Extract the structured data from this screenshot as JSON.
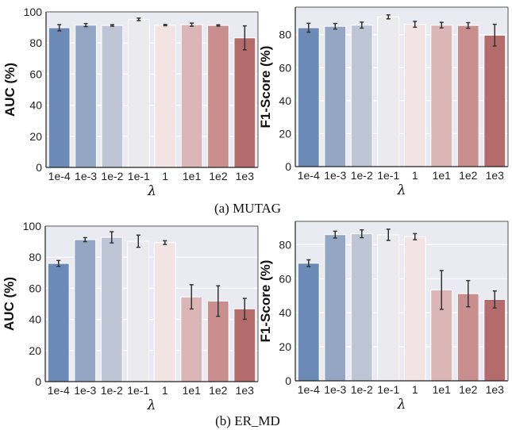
{
  "colors": [
    "#6b8ab6",
    "#93a6c4",
    "#bec6d6",
    "#ebebee",
    "#f3e4e4",
    "#dcb6b6",
    "#c98f8f",
    "#b46b6b"
  ],
  "background": "#eaeaf2",
  "captions": [
    "(a) MUTAG",
    "(b) ER_MD"
  ],
  "chart_data": [
    {
      "type": "bar",
      "dataset": "MUTAG",
      "categories": [
        "1e-4",
        "1e-3",
        "1e-2",
        "1e-1",
        "1",
        "1e1",
        "1e2",
        "1e3"
      ],
      "values": [
        89.8,
        91.5,
        91.3,
        95.2,
        91.5,
        91.8,
        91.3,
        83.3
      ],
      "errors": [
        2.0,
        1.0,
        0.5,
        0.8,
        0.4,
        1.0,
        0.4,
        7.7
      ],
      "xlabel": "λ",
      "ylabel": "AUC (%)",
      "ylim": [
        0,
        100
      ],
      "yticks": [
        0,
        20,
        40,
        60,
        80,
        100
      ],
      "grid": true
    },
    {
      "type": "bar",
      "dataset": "MUTAG",
      "categories": [
        "1e-4",
        "1e-3",
        "1e-2",
        "1e-1",
        "1",
        "1e1",
        "1e2",
        "1e3"
      ],
      "values": [
        84.2,
        85.1,
        85.8,
        90.8,
        86.3,
        85.8,
        85.6,
        79.7
      ],
      "errors": [
        2.7,
        1.7,
        1.8,
        1.2,
        1.8,
        1.7,
        1.7,
        6.6
      ],
      "xlabel": "λ",
      "ylabel": "F1-Score (%)",
      "ylim": [
        0,
        96.7
      ],
      "yticks": [
        0,
        20,
        40,
        60,
        80
      ],
      "grid": true
    },
    {
      "type": "bar",
      "dataset": "ER_MD",
      "categories": [
        "1e-4",
        "1e-3",
        "1e-2",
        "1e-1",
        "1",
        "1e1",
        "1e2",
        "1e3"
      ],
      "values": [
        76.0,
        91.3,
        92.8,
        90.3,
        89.4,
        54.5,
        51.8,
        46.8
      ],
      "errors": [
        1.9,
        1.3,
        3.6,
        3.9,
        1.2,
        7.8,
        9.8,
        6.7
      ],
      "xlabel": "λ",
      "ylabel": "AUC (%)",
      "ylim": [
        0,
        100
      ],
      "yticks": [
        0,
        20,
        40,
        60,
        80,
        100
      ],
      "grid": true
    },
    {
      "type": "bar",
      "dataset": "ER_MD",
      "categories": [
        "1e-4",
        "1e-3",
        "1e-2",
        "1e-1",
        "1",
        "1e1",
        "1e2",
        "1e3"
      ],
      "values": [
        69.1,
        85.9,
        86.4,
        85.8,
        84.7,
        53.4,
        51.2,
        47.8
      ],
      "errors": [
        2.0,
        2.0,
        2.3,
        3.3,
        1.8,
        11.4,
        7.7,
        5.0
      ],
      "xlabel": "λ",
      "ylabel": "F1-Score (%)",
      "ylim": [
        0,
        93.7
      ],
      "yticks": [
        0,
        20,
        40,
        60,
        80
      ],
      "grid": true
    }
  ]
}
